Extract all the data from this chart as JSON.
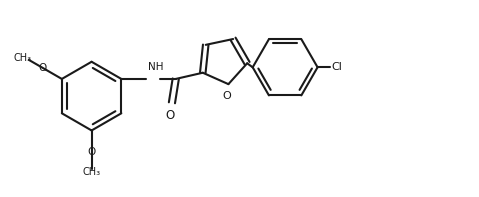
{
  "bg_color": "#ffffff",
  "line_color": "#1a1a1a",
  "line_width": 1.5,
  "figsize": [
    4.79,
    1.97
  ],
  "dpi": 100,
  "xlim": [
    0,
    10
  ],
  "ylim": [
    0,
    4.1
  ]
}
